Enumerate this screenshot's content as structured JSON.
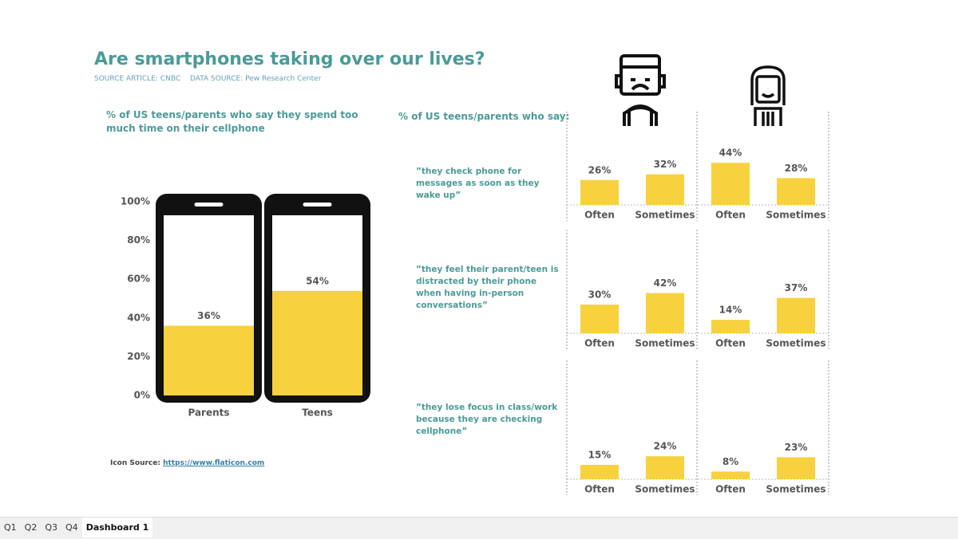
{
  "header": {
    "title": "Are smartphones taking over our lives?",
    "source_article": "SOURCE ARTICLE: CNBC",
    "data_source": "DATA SOURCE: Pew Research Center",
    "section_title": "% of US teens/parents who say:",
    "icon_source_label": "Icon Source:",
    "icon_source_link": "https://www.flaticon.com"
  },
  "tabs": [
    "Q1",
    "Q2",
    "Q3",
    "Q4",
    "Dashboard 1"
  ],
  "chart_data": [
    {
      "type": "phone-bar",
      "title": "% of US teens/parents who say they spend too much time on their cellphone",
      "categories": [
        "Parents",
        "Teens"
      ],
      "values": [
        36,
        54
      ],
      "value_labels": [
        "36%",
        "54%"
      ],
      "color": "#f8d13e",
      "ylim": [
        0,
        100
      ],
      "yticks": [
        {
          "value": 0,
          "label": "0%"
        },
        {
          "value": 20,
          "label": "20%"
        },
        {
          "value": 40,
          "label": "40%"
        },
        {
          "value": 60,
          "label": "60%"
        },
        {
          "value": 80,
          "label": "80%"
        },
        {
          "value": 100,
          "label": "100%"
        }
      ]
    },
    {
      "type": "bar",
      "title": "”they check phone for messages as soon as they wake up”",
      "categories": [
        "Often",
        "Sometimes",
        "Often",
        "Sometimes"
      ],
      "values": [
        26,
        32,
        44,
        28
      ],
      "value_labels": [
        "26%",
        "32%",
        "44%",
        "28%"
      ],
      "color": "#f8d13e"
    },
    {
      "type": "bar",
      "title": "”they feel their parent/teen is distracted by their phone when having in-person conversations”",
      "categories": [
        "Often",
        "Sometimes",
        "Often",
        "Sometimes"
      ],
      "values": [
        30,
        42,
        14,
        37
      ],
      "value_labels": [
        "30%",
        "42%",
        "14%",
        "37%"
      ],
      "color": "#f8d13e"
    },
    {
      "type": "bar",
      "title": "”they lose focus in class/work because they are checking cellphone”",
      "categories": [
        "Often",
        "Sometimes",
        "Often",
        "Sometimes"
      ],
      "values": [
        15,
        24,
        8,
        23
      ],
      "value_labels": [
        "15%",
        "24%",
        "8%",
        "23%"
      ],
      "color": "#f8d13e"
    }
  ]
}
